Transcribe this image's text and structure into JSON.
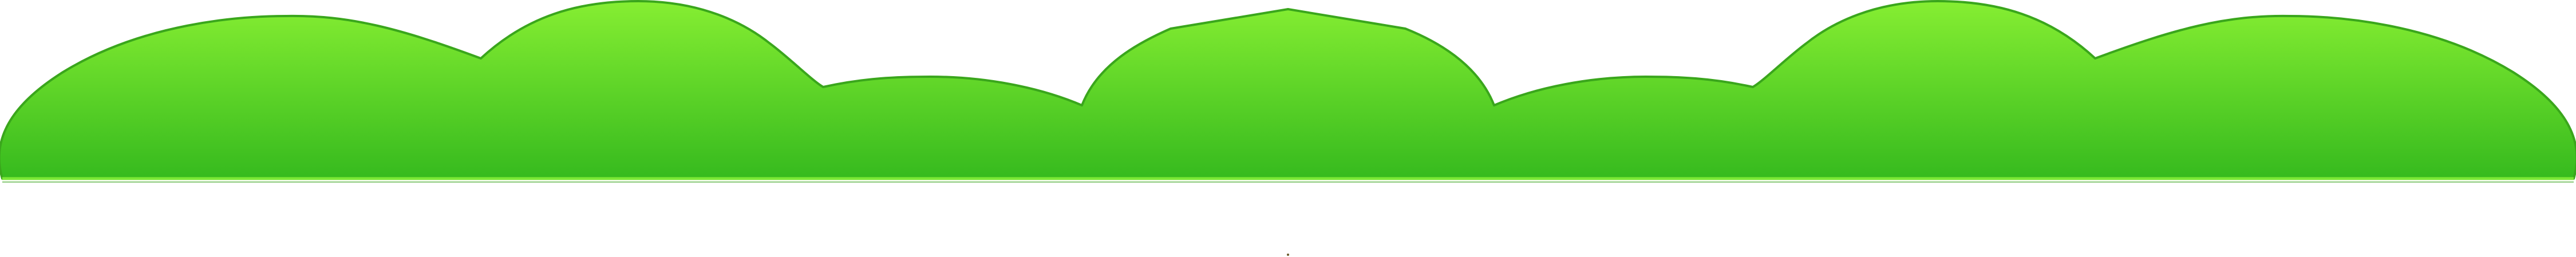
{
  "sprite": {
    "asset": "bush-icon",
    "colors": {
      "top": "#86ee32",
      "bottom": "#36ba1e",
      "outline": "#3aa61c",
      "base_line": "#7be836",
      "marker": "#6b5a2a"
    }
  }
}
